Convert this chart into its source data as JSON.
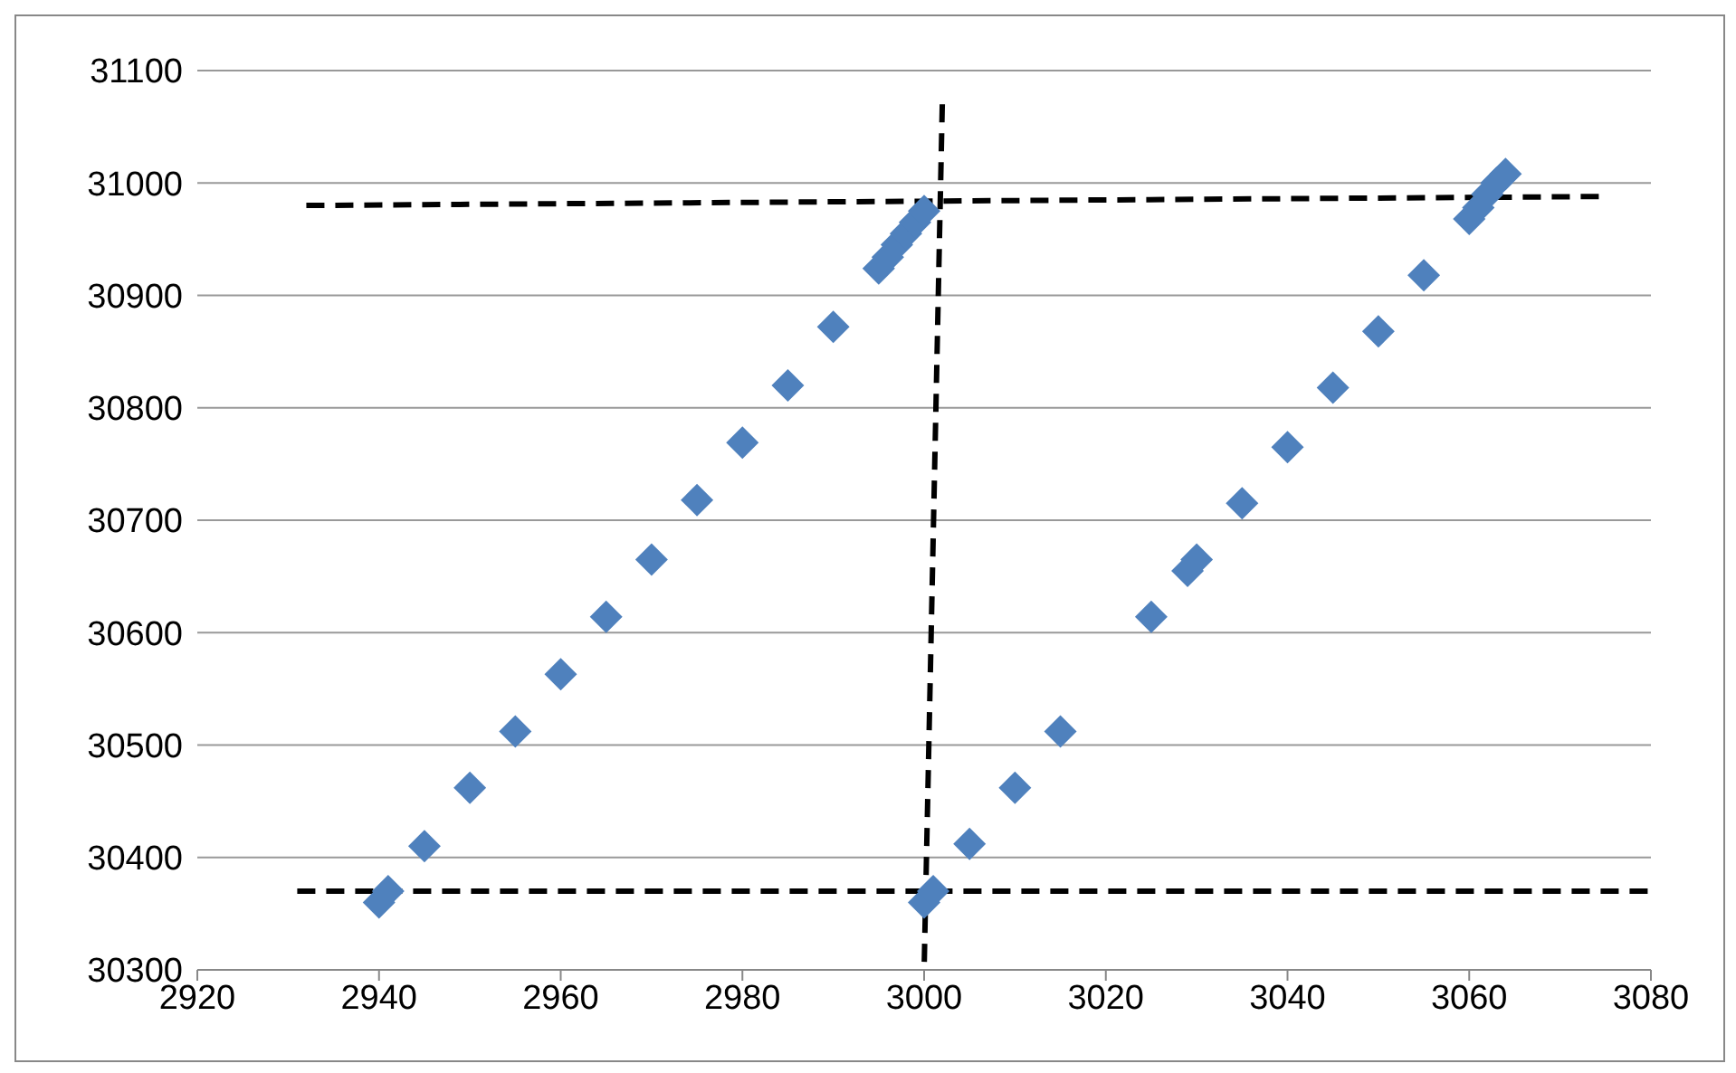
{
  "chart_data": {
    "type": "scatter",
    "xlim": [
      2920,
      3080
    ],
    "xticks": [
      2920,
      2940,
      2960,
      2980,
      3000,
      3020,
      3040,
      3060,
      3080
    ],
    "ylim": [
      30300,
      31100
    ],
    "yticks": [
      30300,
      30400,
      30500,
      30600,
      30700,
      30800,
      30900,
      31000,
      31100
    ],
    "grid": "y",
    "marker": "diamond",
    "series": [
      {
        "color": "#4f81bd",
        "x": [
          2940,
          2941,
          2945,
          2950,
          2955,
          2960,
          2965,
          2970,
          2975,
          2980,
          2985,
          2990,
          2995,
          2996,
          2997,
          2998,
          2999,
          3000,
          3000,
          3001,
          3005,
          3010,
          3015,
          3025,
          3029,
          3030,
          3035,
          3040,
          3045,
          3050,
          3055,
          3060,
          3061,
          3062,
          3063,
          3064
        ],
        "values": [
          30360,
          30370,
          30410,
          30462,
          30512,
          30563,
          30614,
          30665,
          30718,
          30769,
          30820,
          30872,
          30924,
          30934,
          30945,
          30955,
          30965,
          30975,
          30360,
          30370,
          30412,
          30462,
          30512,
          30614,
          30655,
          30665,
          30715,
          30765,
          30818,
          30868,
          30918,
          30968,
          30978,
          30990,
          31000,
          31008
        ]
      },
      {
        "type": "line",
        "color": "#000000",
        "line_style": "dashed",
        "marker": "none",
        "x": [
          2932,
          3075
        ],
        "values": [
          30980,
          30988
        ]
      },
      {
        "type": "line",
        "color": "#000000",
        "line_style": "dashed",
        "marker": "none",
        "x": [
          2931,
          3080
        ],
        "values": [
          30370,
          30370
        ]
      },
      {
        "type": "line",
        "color": "#000000",
        "line_style": "dashed",
        "marker": "none",
        "x": [
          3002,
          3000
        ],
        "values": [
          31070,
          30300
        ]
      }
    ]
  }
}
